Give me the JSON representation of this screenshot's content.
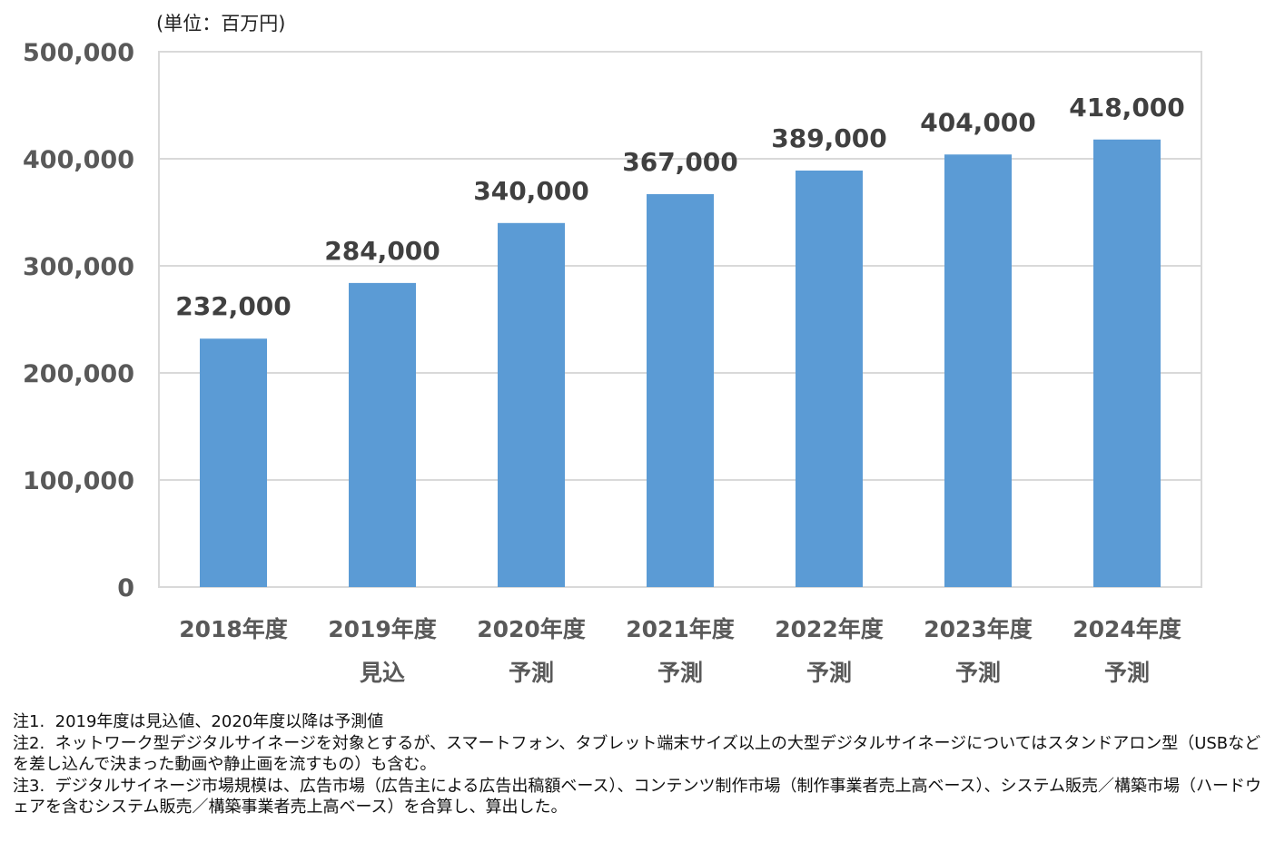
{
  "chart_data": {
    "type": "bar",
    "unit_label": "(単位：百万円)",
    "categories": [
      [
        "2018年度",
        ""
      ],
      [
        "2019年度",
        "見込"
      ],
      [
        "2020年度",
        "予測"
      ],
      [
        "2021年度",
        "予測"
      ],
      [
        "2022年度",
        "予測"
      ],
      [
        "2023年度",
        "予測"
      ],
      [
        "2024年度",
        "予測"
      ]
    ],
    "values": [
      232000,
      284000,
      340000,
      367000,
      389000,
      404000,
      418000
    ],
    "value_labels": [
      "232,000",
      "284,000",
      "340,000",
      "367,000",
      "389,000",
      "404,000",
      "418,000"
    ],
    "y_ticks": [
      0,
      100000,
      200000,
      300000,
      400000,
      500000
    ],
    "y_tick_labels": [
      "0",
      "100,000",
      "200,000",
      "300,000",
      "400,000",
      "500,000"
    ],
    "ylim": [
      0,
      500000
    ],
    "grid": true,
    "bar_color": "#5B9BD5",
    "grid_color": "#D9D9D9"
  },
  "notes": [
    "注1.  2019年度は見込値、2020年度以降は予測値",
    "注2.  ネットワーク型デジタルサイネージを対象とするが、スマートフォン、タブレット端末サイズ以上の大型デジタルサイネージについてはスタンドアロン型（USBなどを差し込んで決まった動画や静止画を流すもの）も含む。",
    "注3.  デジタルサイネージ市場規模は、広告市場（広告主による広告出稿額ベース）、コンテンツ制作市場（制作事業者売上高ベース）、システム販売／構築市場（ハードウェアを含むシステム販売／構築事業者売上高ベース）を合算し、算出した。"
  ]
}
